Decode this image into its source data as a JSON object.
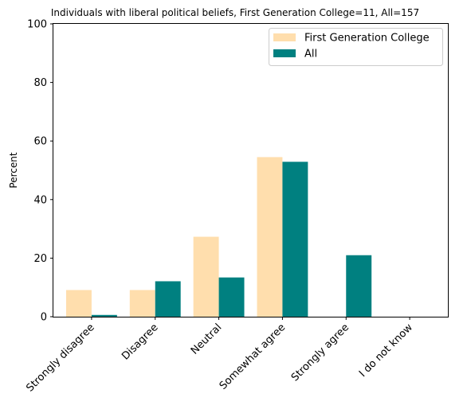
{
  "chart_data": {
    "type": "bar",
    "title": "Individuals with liberal political beliefs, First Generation College=11, All=157",
    "xlabel": "",
    "ylabel": "Percent",
    "ylim": [
      0,
      100
    ],
    "yticks": [
      0,
      20,
      40,
      60,
      80,
      100
    ],
    "categories": [
      "Strongly disagree",
      "Disagree",
      "Neutral",
      "Somewhat agree",
      "Strongly agree",
      "I do not know"
    ],
    "series": [
      {
        "name": "First Generation College",
        "color": "#FFDEAD",
        "values": [
          9.1,
          9.1,
          27.3,
          54.5,
          0,
          0
        ]
      },
      {
        "name": "All",
        "color": "#008080",
        "values": [
          0.6,
          12.1,
          13.4,
          52.9,
          21.0,
          0
        ]
      }
    ],
    "legend": "top-right",
    "grid": false
  }
}
